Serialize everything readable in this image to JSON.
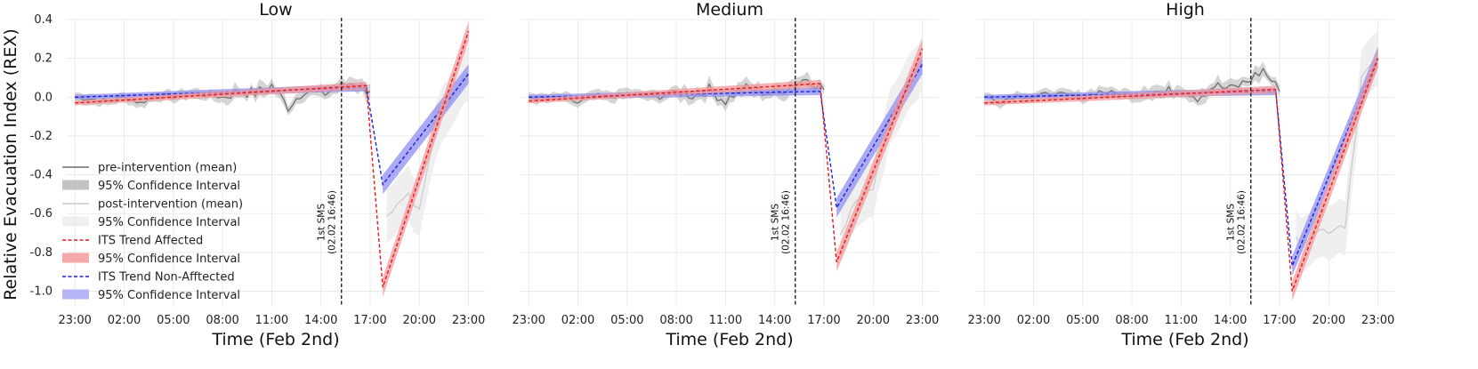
{
  "ylabel": "Relative Evacuation Index (REX)",
  "sms_annotation_line1": "1st SMS",
  "sms_annotation_line2": "(02.02 16:46)",
  "legend": [
    {
      "label": "pre-intervention (mean)",
      "kind": "line",
      "color": "#6e6e6e"
    },
    {
      "label": "95% Confidence Interval",
      "kind": "band",
      "color": "#b9b9b9"
    },
    {
      "label": "post-intervention (mean)",
      "kind": "line",
      "color": "#c9c9c9"
    },
    {
      "label": "95% Confidence Interval",
      "kind": "band",
      "color": "#ececec"
    },
    {
      "label": "ITS Trend Affected",
      "kind": "dashed",
      "color": "#e31a1c"
    },
    {
      "label": "95% Confidence Interval",
      "kind": "band",
      "color": "#f49a9a"
    },
    {
      "label": "ITS Trend Non-Afftected",
      "kind": "dashed",
      "color": "#1f1fd6"
    },
    {
      "label": "95% Confidence Interval",
      "kind": "band",
      "color": "#a9a9f4"
    }
  ],
  "chart_data": [
    {
      "type": "line",
      "title": "Low",
      "xlabel": "Time (Feb 2nd)",
      "ylabel": "Relative Evacuation Index (REX)",
      "x_unit": "hours since 23:00 Feb 1st",
      "xlim": [
        -0.5,
        25.0
      ],
      "ylim": [
        -1.08,
        0.4
      ],
      "xticks": [
        "23:00",
        "02:00",
        "05:00",
        "08:00",
        "11:00",
        "14:00",
        "17:00",
        "20:00",
        "23:00"
      ],
      "yticks": [
        "0.4",
        "0.2",
        "0.0",
        "-0.2",
        "-0.4",
        "-0.6",
        "-0.8",
        "-1.0"
      ],
      "intervention_x": 17.77,
      "pre_mean": {
        "x": [
          0,
          1,
          2,
          3,
          4,
          5,
          6,
          7,
          8,
          9,
          10,
          11,
          12,
          13,
          14,
          15,
          16,
          17,
          18
        ],
        "y": [
          0.0,
          -0.01,
          -0.02,
          0.0,
          -0.03,
          0.01,
          0.0,
          0.02,
          0.01,
          0.0,
          0.03,
          0.02,
          0.06,
          -0.05,
          0.04,
          0.01,
          0.05,
          0.08,
          0.03
        ]
      },
      "post_mean": {
        "x": [
          19,
          20,
          21,
          22,
          23,
          24
        ],
        "y": [
          -0.62,
          -0.5,
          -0.55,
          -0.15,
          0.0,
          0.12
        ]
      },
      "affected": {
        "pre_start": -0.03,
        "pre_end": 0.06,
        "post_start": -0.98,
        "post_end": 0.34
      },
      "non_affected": {
        "pre_start": 0.0,
        "pre_end": 0.05,
        "post_start": -0.45,
        "post_end": 0.12
      }
    },
    {
      "type": "line",
      "title": "Medium",
      "xlabel": "Time (Feb 2nd)",
      "x_unit": "hours since 23:00 Feb 1st",
      "xlim": [
        -0.5,
        25.0
      ],
      "ylim": [
        -1.08,
        0.4
      ],
      "xticks": [
        "23:00",
        "02:00",
        "05:00",
        "08:00",
        "11:00",
        "14:00",
        "17:00",
        "20:00",
        "23:00"
      ],
      "yticks": [
        "0.4",
        "0.2",
        "0.0",
        "-0.2",
        "-0.4",
        "-0.6",
        "-0.8",
        "-1.0"
      ],
      "intervention_x": 17.77,
      "pre_mean": {
        "x": [
          0,
          1,
          2,
          3,
          4,
          5,
          6,
          7,
          8,
          9,
          10,
          11,
          12,
          13,
          14,
          15,
          16,
          17,
          18
        ],
        "y": [
          0.0,
          -0.01,
          0.0,
          -0.03,
          0.01,
          0.0,
          0.02,
          0.01,
          0.0,
          0.03,
          0.01,
          0.04,
          -0.02,
          0.05,
          0.03,
          0.02,
          0.06,
          0.1,
          0.04
        ]
      },
      "post_mean": {
        "x": [
          19,
          20,
          21,
          22,
          23,
          24
        ],
        "y": [
          -0.7,
          -0.55,
          -0.45,
          -0.1,
          0.05,
          0.18
        ]
      },
      "affected": {
        "pre_start": -0.02,
        "pre_end": 0.07,
        "post_start": -0.85,
        "post_end": 0.25
      },
      "non_affected": {
        "pre_start": 0.0,
        "pre_end": 0.03,
        "post_start": -0.57,
        "post_end": 0.17
      }
    },
    {
      "type": "line",
      "title": "High",
      "xlabel": "Time (Feb 2nd)",
      "x_unit": "hours since 23:00 Feb 1st",
      "xlim": [
        -0.5,
        25.0
      ],
      "ylim": [
        -1.08,
        0.4
      ],
      "xticks": [
        "23:00",
        "02:00",
        "05:00",
        "08:00",
        "11:00",
        "14:00",
        "17:00",
        "20:00",
        "23:00"
      ],
      "yticks": [
        "0.4",
        "0.2",
        "0.0",
        "-0.2",
        "-0.4",
        "-0.6",
        "-0.8",
        "-1.0"
      ],
      "intervention_x": 17.77,
      "pre_mean": {
        "x": [
          0,
          1,
          2,
          3,
          4,
          5,
          6,
          7,
          8,
          9,
          10,
          11,
          12,
          13,
          14,
          15,
          16,
          17,
          18
        ],
        "y": [
          0.0,
          -0.02,
          0.01,
          0.0,
          0.02,
          0.01,
          0.0,
          0.03,
          0.02,
          0.01,
          0.04,
          0.02,
          0.05,
          0.0,
          0.06,
          0.04,
          0.08,
          0.14,
          0.03
        ]
      },
      "post_mean": {
        "x": [
          19,
          20,
          21,
          22,
          23,
          24
        ],
        "y": [
          -0.75,
          -0.7,
          -0.68,
          -0.65,
          0.1,
          0.2
        ]
      },
      "affected": {
        "pre_start": -0.03,
        "pre_end": 0.04,
        "post_start": -1.0,
        "post_end": 0.2
      },
      "non_affected": {
        "pre_start": 0.0,
        "pre_end": 0.03,
        "post_start": -0.87,
        "post_end": 0.21
      }
    }
  ]
}
